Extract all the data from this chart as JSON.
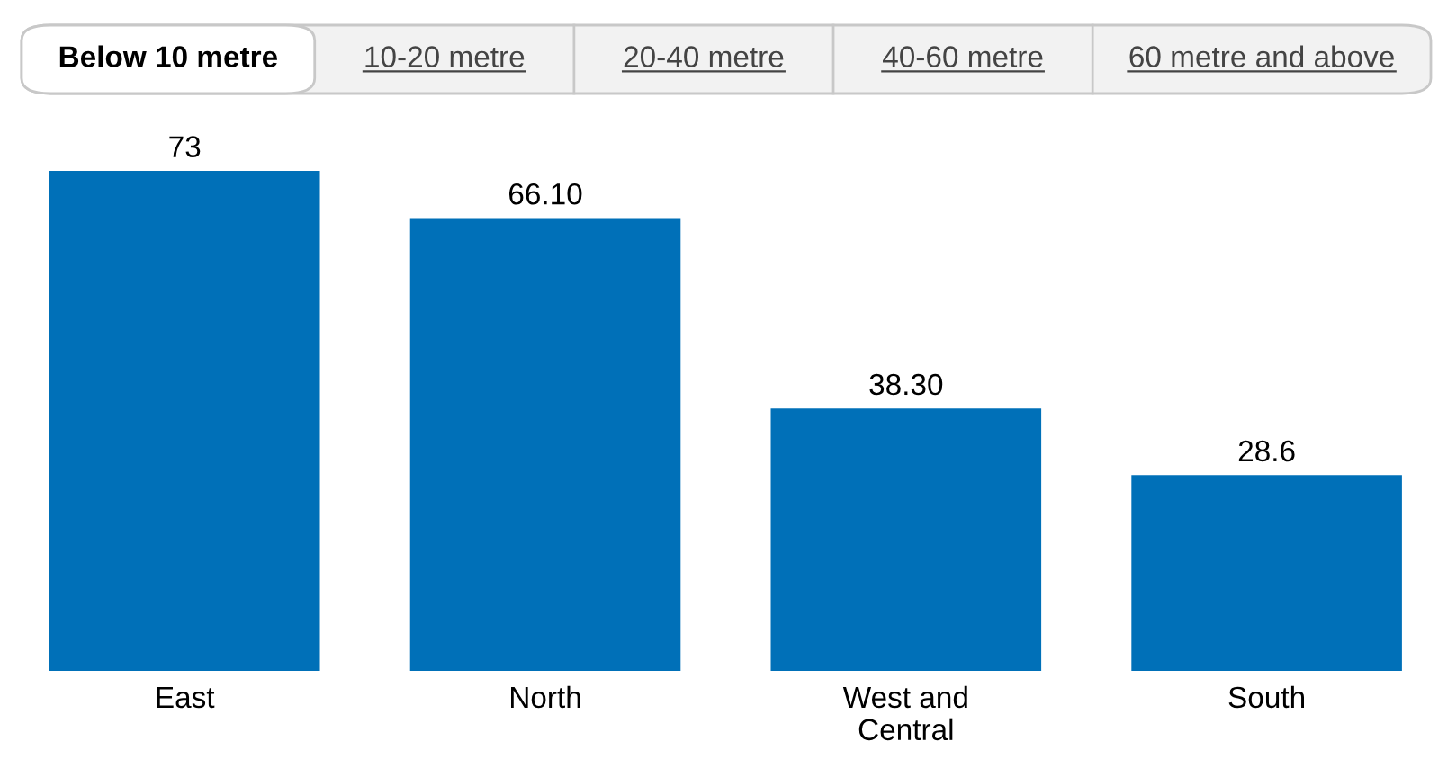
{
  "chart_data": {
    "type": "bar",
    "categories": [
      "East",
      "North",
      "West and\nCentral",
      "South"
    ],
    "values": [
      73,
      66.1,
      38.3,
      28.6
    ],
    "value_labels": [
      "73",
      "66.10",
      "38.30",
      "28.6"
    ],
    "color": "#0070b8",
    "grid": false,
    "legend": false,
    "tick_labels": "x",
    "annotations": [
      "Below 10 metre",
      "10-20 metre",
      "20-40 metre",
      "40-60 metre",
      "60 metre and above"
    ]
  }
}
